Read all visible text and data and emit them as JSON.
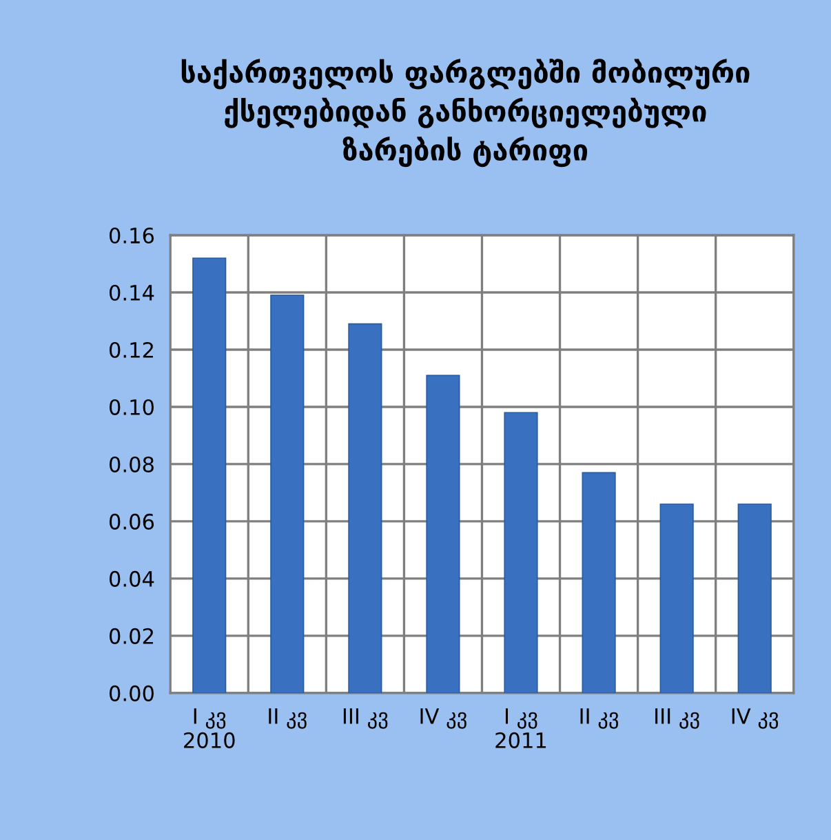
{
  "chart_data": {
    "type": "bar",
    "title": "საქართველოს ფარგლებში მობილური\nქსელებიდან განხორციელებული\nზარების ტარიფი",
    "categories": [
      "I კვ\n2010",
      "II კვ",
      "III კვ",
      "IV კვ",
      "I კვ\n2011",
      "II კვ",
      "III კვ",
      "IV კვ"
    ],
    "values": [
      0.152,
      0.139,
      0.129,
      0.111,
      0.098,
      0.077,
      0.066,
      0.066
    ],
    "color": "#3a70c0",
    "ylim": [
      0,
      0.16
    ],
    "yticks": [
      {
        "value": 0,
        "label": "0.00"
      },
      {
        "value": 0.02,
        "label": "0.02"
      },
      {
        "value": 0.04,
        "label": "0.04"
      },
      {
        "value": 0.06,
        "label": "0.06"
      },
      {
        "value": 0.08,
        "label": "0.08"
      },
      {
        "value": 0.1,
        "label": "0.10"
      },
      {
        "value": 0.12,
        "label": "0.12"
      },
      {
        "value": 0.14,
        "label": "0.14"
      },
      {
        "value": 0.16,
        "label": "0.16"
      }
    ],
    "grid": true
  }
}
